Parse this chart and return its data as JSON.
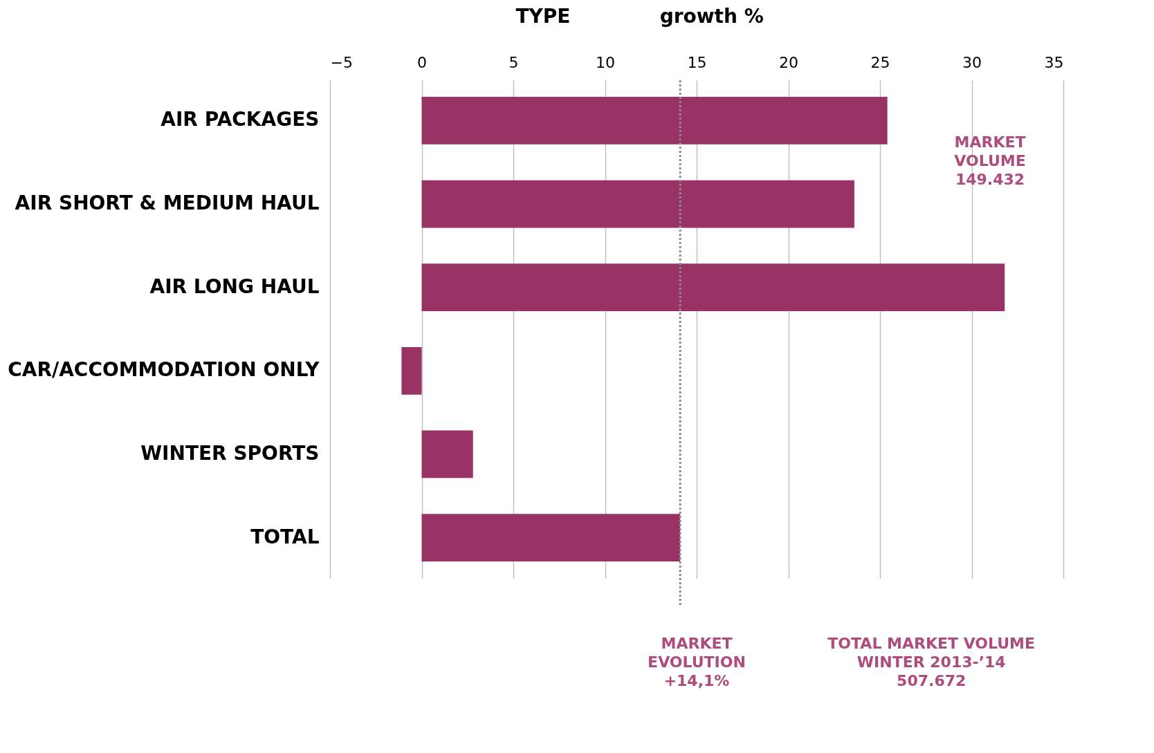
{
  "chart_data": {
    "type": "bar",
    "orientation": "horizontal",
    "xlabel": "growth %",
    "ylabel": "TYPE",
    "categories": [
      "AIR PACKAGES",
      "AIR SHORT & MEDIUM HAUL",
      "AIR LONG HAUL",
      "CAR/ACCOMMODATION ONLY",
      "WINTER SPORTS",
      "TOTAL"
    ],
    "values": [
      25.4,
      23.6,
      31.8,
      -1.1,
      2.8,
      14.1
    ],
    "color": "#993366",
    "xlim": [
      -5,
      35
    ],
    "xticks": [
      -5,
      0,
      5,
      10,
      15,
      20,
      25,
      30,
      35
    ],
    "grid": "x",
    "ref_lines": [
      {
        "axis": "x",
        "value": 14.1,
        "color": "#8c8c8c",
        "line_style": "dotted"
      }
    ],
    "annotations": [
      "MARKET\nVOLUME\n\n149.432",
      "MARKET\nEVOLUTION\n\n+14,1%",
      "TOTAL MARKET VOLUME\nWINTER 2013-’14\n\n507.672"
    ]
  }
}
